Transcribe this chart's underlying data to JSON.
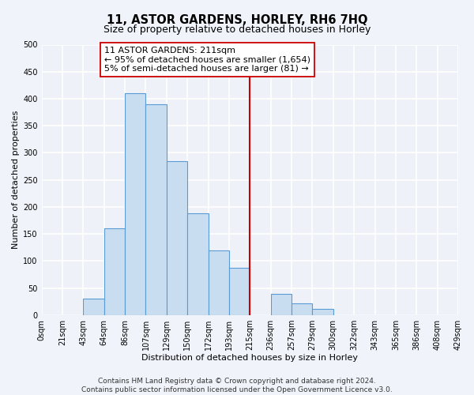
{
  "title": "11, ASTOR GARDENS, HORLEY, RH6 7HQ",
  "subtitle": "Size of property relative to detached houses in Horley",
  "xlabel": "Distribution of detached houses by size in Horley",
  "ylabel": "Number of detached properties",
  "footer_line1": "Contains HM Land Registry data © Crown copyright and database right 2024.",
  "footer_line2": "Contains public sector information licensed under the Open Government Licence v3.0.",
  "bin_labels": [
    "0sqm",
    "21sqm",
    "43sqm",
    "64sqm",
    "86sqm",
    "107sqm",
    "129sqm",
    "150sqm",
    "172sqm",
    "193sqm",
    "215sqm",
    "236sqm",
    "257sqm",
    "279sqm",
    "300sqm",
    "322sqm",
    "343sqm",
    "365sqm",
    "386sqm",
    "408sqm",
    "429sqm"
  ],
  "bar_heights": [
    0,
    0,
    30,
    160,
    410,
    390,
    285,
    188,
    120,
    87,
    0,
    40,
    22,
    12,
    0,
    0,
    0,
    0,
    0,
    0
  ],
  "bar_color": "#c9ddf0",
  "bar_edge_color": "#5b9bd5",
  "vline_x_bin": 10,
  "vline_color": "#cc0000",
  "ann_line1": "11 ASTOR GARDENS: 211sqm",
  "ann_line2": "← 95% of detached houses are smaller (1,654)",
  "ann_line3": "5% of semi-detached houses are larger (81) →",
  "ylim": [
    0,
    500
  ],
  "background_color": "#f0f4fa",
  "plot_bg_color": "#eef2f8",
  "grid_color": "#ffffff",
  "title_fontsize": 10.5,
  "subtitle_fontsize": 9,
  "axis_label_fontsize": 8,
  "tick_fontsize": 7,
  "annotation_fontsize": 8,
  "footer_fontsize": 6.5,
  "num_bins": 20
}
